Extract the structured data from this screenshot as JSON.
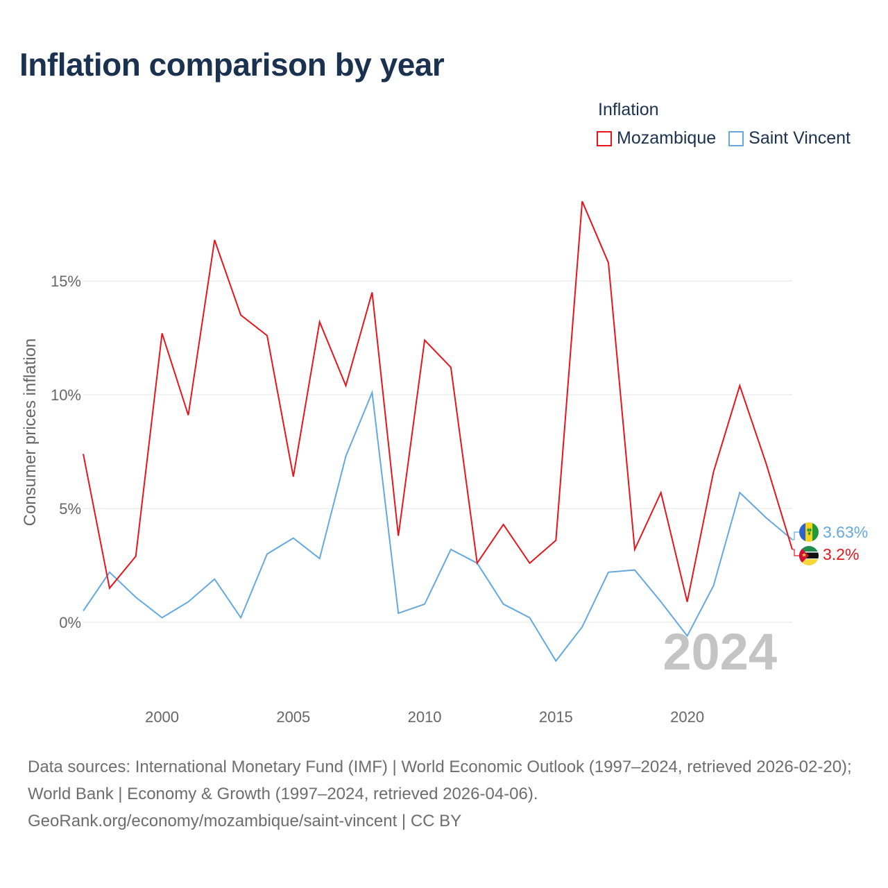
{
  "title": "Inflation comparison by year",
  "legend": {
    "title": "Inflation",
    "items": [
      {
        "label": "Mozambique",
        "color": "#e8141b"
      },
      {
        "label": "Saint Vincent",
        "color": "#64a8e2"
      }
    ]
  },
  "source": {
    "line1": "Data sources: International Monetary Fund (IMF) | World Economic Outlook (1997–2024, retrieved 2026-02-20); World Bank | Economy & Growth (1997–2024, retrieved 2026-04-06).",
    "line2": "GeoRank.org/economy/mozambique/saint-vincent | CC BY"
  },
  "chart_data": {
    "type": "line",
    "title": "Inflation comparison by year",
    "xlabel": "",
    "ylabel": "Consumer prices inflation",
    "xlim": [
      1997,
      2024
    ],
    "ylim": [
      -3.5,
      20
    ],
    "x_ticks": [
      2000,
      2005,
      2010,
      2015,
      2020
    ],
    "y_ticks": [
      0,
      5,
      10,
      15
    ],
    "y_tick_labels": [
      "0%",
      "5%",
      "10%",
      "15%"
    ],
    "grid": true,
    "watermark_year": "2024",
    "x": [
      1997,
      1998,
      1999,
      2000,
      2001,
      2002,
      2003,
      2004,
      2005,
      2006,
      2007,
      2008,
      2009,
      2010,
      2011,
      2012,
      2013,
      2014,
      2015,
      2016,
      2017,
      2018,
      2019,
      2020,
      2021,
      2022,
      2023,
      2024
    ],
    "series": [
      {
        "name": "Mozambique",
        "color": "#e8141b",
        "end_label": "3.2%",
        "flag": "mozambique-flag",
        "values": [
          7.4,
          1.5,
          2.9,
          12.7,
          9.1,
          16.8,
          13.5,
          12.6,
          6.4,
          13.2,
          10.4,
          14.5,
          3.8,
          12.4,
          11.2,
          2.6,
          4.3,
          2.6,
          3.6,
          18.5,
          15.8,
          3.2,
          5.7,
          0.9,
          6.6,
          10.4,
          7.0,
          3.2
        ]
      },
      {
        "name": "Saint Vincent",
        "color": "#64a8e2",
        "end_label": "3.63%",
        "flag": "saint-vincent-flag",
        "values": [
          0.5,
          2.2,
          1.1,
          0.2,
          0.9,
          1.9,
          0.2,
          3.0,
          3.7,
          2.8,
          7.3,
          10.1,
          0.4,
          0.8,
          3.2,
          2.6,
          0.8,
          0.2,
          -1.7,
          -0.2,
          2.2,
          2.3,
          0.9,
          -0.6,
          1.6,
          5.7,
          4.6,
          3.63
        ]
      }
    ]
  }
}
